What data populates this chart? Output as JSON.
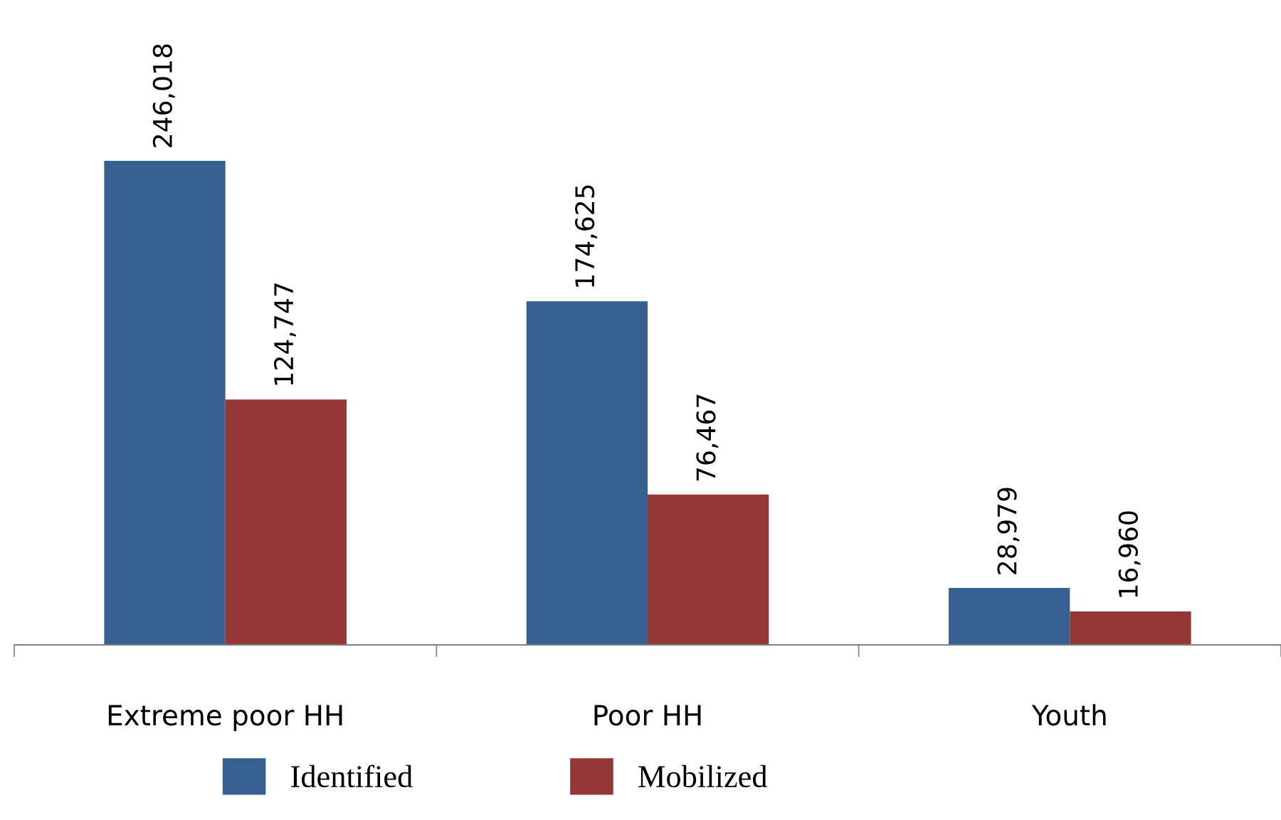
{
  "chart_data": {
    "type": "bar",
    "categories": [
      "Extreme poor HH",
      "Poor HH",
      "Youth"
    ],
    "series": [
      {
        "name": "Identified",
        "color": "#366092",
        "values": [
          246018,
          174625,
          28979
        ],
        "value_labels": [
          "246,018",
          "174,625",
          "28,979"
        ]
      },
      {
        "name": "Mobilized",
        "color": "#953735",
        "values": [
          124747,
          76467,
          16960
        ],
        "value_labels": [
          "124,747",
          "76,467",
          "16,960"
        ]
      }
    ],
    "legend": "bottom",
    "grid": false
  }
}
